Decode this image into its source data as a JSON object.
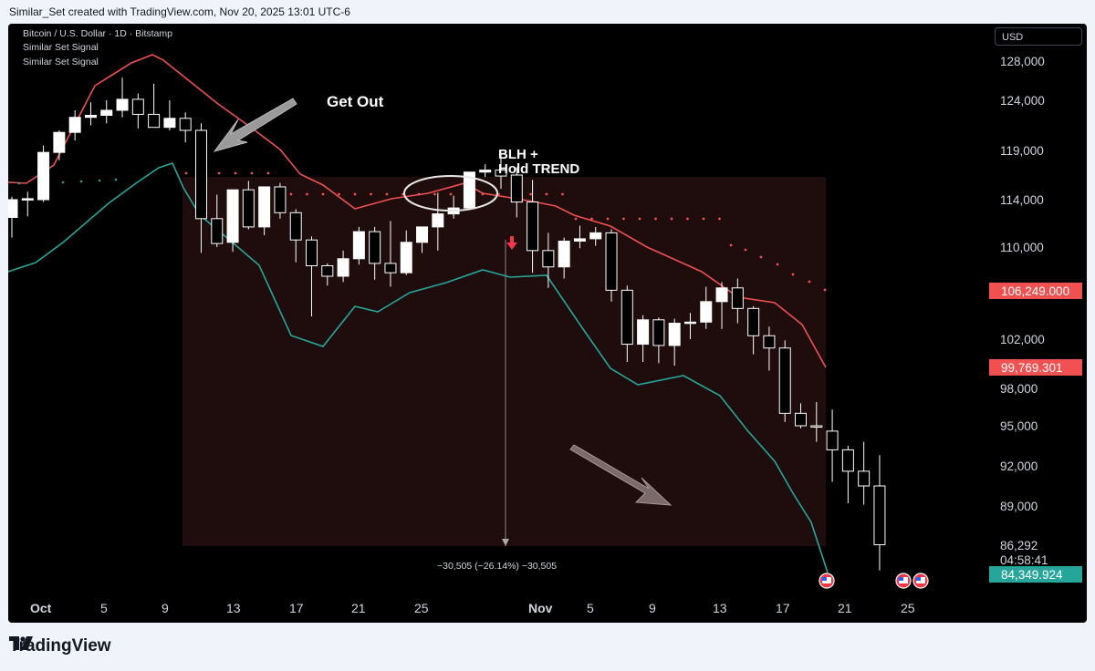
{
  "header": {
    "caption": "Similar_Set created with TradingView.com, Nov 20, 2025 13:01 UTC-6"
  },
  "legend": {
    "symbol": "Bitcoin / U.S. Dollar · 1D · Bitstamp",
    "indicator1": "Similar Set Signal",
    "indicator2": "Similar Set Signal"
  },
  "currency_button": "USD",
  "footer": {
    "brand": "TradingView"
  },
  "colors": {
    "upper_band": "#f05050",
    "lower_band": "#26a69a",
    "box_fill": "#1f0d0d",
    "candle": "#ffffff"
  },
  "chart_data": {
    "type": "candlestick",
    "title": "Bitcoin / U.S. Dollar · 1D · Bitstamp",
    "y_axis": {
      "ticks": [
        "128,000",
        "124,000",
        "119,000",
        "114,000",
        "110,000",
        "106,249.000",
        "102,000",
        "99,769.301",
        "98,000",
        "95,000",
        "92,000",
        "89,000",
        "86,292",
        "04:58:41",
        "84,349.924"
      ]
    },
    "x_axis": {
      "ticks": [
        "Oct",
        "5",
        "9",
        "13",
        "17",
        "21",
        "25",
        "Nov",
        "5",
        "9",
        "13",
        "17",
        "21",
        "25"
      ]
    },
    "annotations": {
      "get_out": "Get Out",
      "blh_line1": "BLH +",
      "blh_line2": "Hold TREND",
      "measure": "−30,505 (−26.14%) −30,505"
    },
    "series": [
      {
        "kind": "ohlc",
        "values": [
          [
            112500,
            114300,
            110800,
            114000
          ],
          [
            114000,
            114800,
            112600,
            114100
          ],
          [
            114000,
            119500,
            113800,
            118800
          ],
          [
            118800,
            121000,
            118000,
            120800
          ],
          [
            120800,
            123000,
            120000,
            122300
          ],
          [
            122300,
            123800,
            121500,
            122500
          ],
          [
            122500,
            124000,
            121700,
            123000
          ],
          [
            123000,
            126300,
            122300,
            124100
          ],
          [
            124100,
            124700,
            121200,
            122600
          ],
          [
            122600,
            125700,
            121400,
            121300
          ],
          [
            121300,
            124000,
            121000,
            122200
          ],
          [
            122200,
            122800,
            119800,
            121000
          ],
          [
            121000,
            121700,
            109500,
            112400
          ],
          [
            112400,
            114500,
            110000,
            110300
          ],
          [
            110400,
            114300,
            109600,
            115000
          ],
          [
            115000,
            115900,
            111500,
            111700
          ],
          [
            111700,
            115300,
            111000,
            115300
          ],
          [
            115300,
            115700,
            112400,
            112900
          ],
          [
            112900,
            113200,
            108700,
            110600
          ],
          [
            110600,
            110900,
            104000,
            108400
          ],
          [
            108400,
            108600,
            106700,
            107500
          ],
          [
            107500,
            109700,
            107000,
            109000
          ],
          [
            109000,
            111700,
            108500,
            111300
          ],
          [
            111300,
            111700,
            107200,
            108600
          ],
          [
            108600,
            112200,
            106600,
            107800
          ],
          [
            107800,
            111400,
            107600,
            110400
          ],
          [
            110400,
            111400,
            109500,
            111700
          ],
          [
            111700,
            114700,
            109700,
            112800
          ],
          [
            112800,
            114400,
            112400,
            113300
          ],
          [
            113300,
            114000,
            113400,
            116800
          ],
          [
            116800,
            117600,
            116300,
            117000
          ],
          [
            117000,
            118600,
            115100,
            116400
          ],
          [
            116500,
            117300,
            112500,
            113800
          ],
          [
            113800,
            116000,
            107800,
            109700
          ],
          [
            109700,
            111200,
            106500,
            108300
          ],
          [
            108300,
            110800,
            107300,
            110500
          ],
          [
            110500,
            111800,
            109900,
            110700
          ],
          [
            110700,
            111700,
            110100,
            111200
          ],
          [
            111200,
            111500,
            105300,
            106300
          ],
          [
            106300,
            106700,
            100200,
            101600
          ],
          [
            101600,
            104100,
            100200,
            103700
          ],
          [
            103700,
            103900,
            100100,
            101500
          ],
          [
            101500,
            103800,
            99900,
            103400
          ],
          [
            103400,
            104300,
            102000,
            103500
          ],
          [
            103500,
            106600,
            102900,
            105300
          ],
          [
            105300,
            107000,
            102900,
            106500
          ],
          [
            106500,
            107300,
            103400,
            104700
          ],
          [
            104700,
            104900,
            100800,
            102300
          ],
          [
            102300,
            103100,
            99500,
            101300
          ],
          [
            101300,
            101900,
            95300,
            96000
          ],
          [
            96000,
            96800,
            94800,
            95000
          ],
          [
            95000,
            96900,
            93800,
            94900
          ],
          [
            94600,
            96300,
            90800,
            93200
          ],
          [
            93200,
            93500,
            89200,
            91600
          ],
          [
            91600,
            93800,
            89100,
            90500
          ],
          [
            90500,
            92800,
            84500,
            86292
          ]
        ]
      },
      {
        "kind": "upper_band",
        "note": "red resistance line"
      },
      {
        "kind": "lower_band",
        "note": "green support line"
      }
    ]
  }
}
